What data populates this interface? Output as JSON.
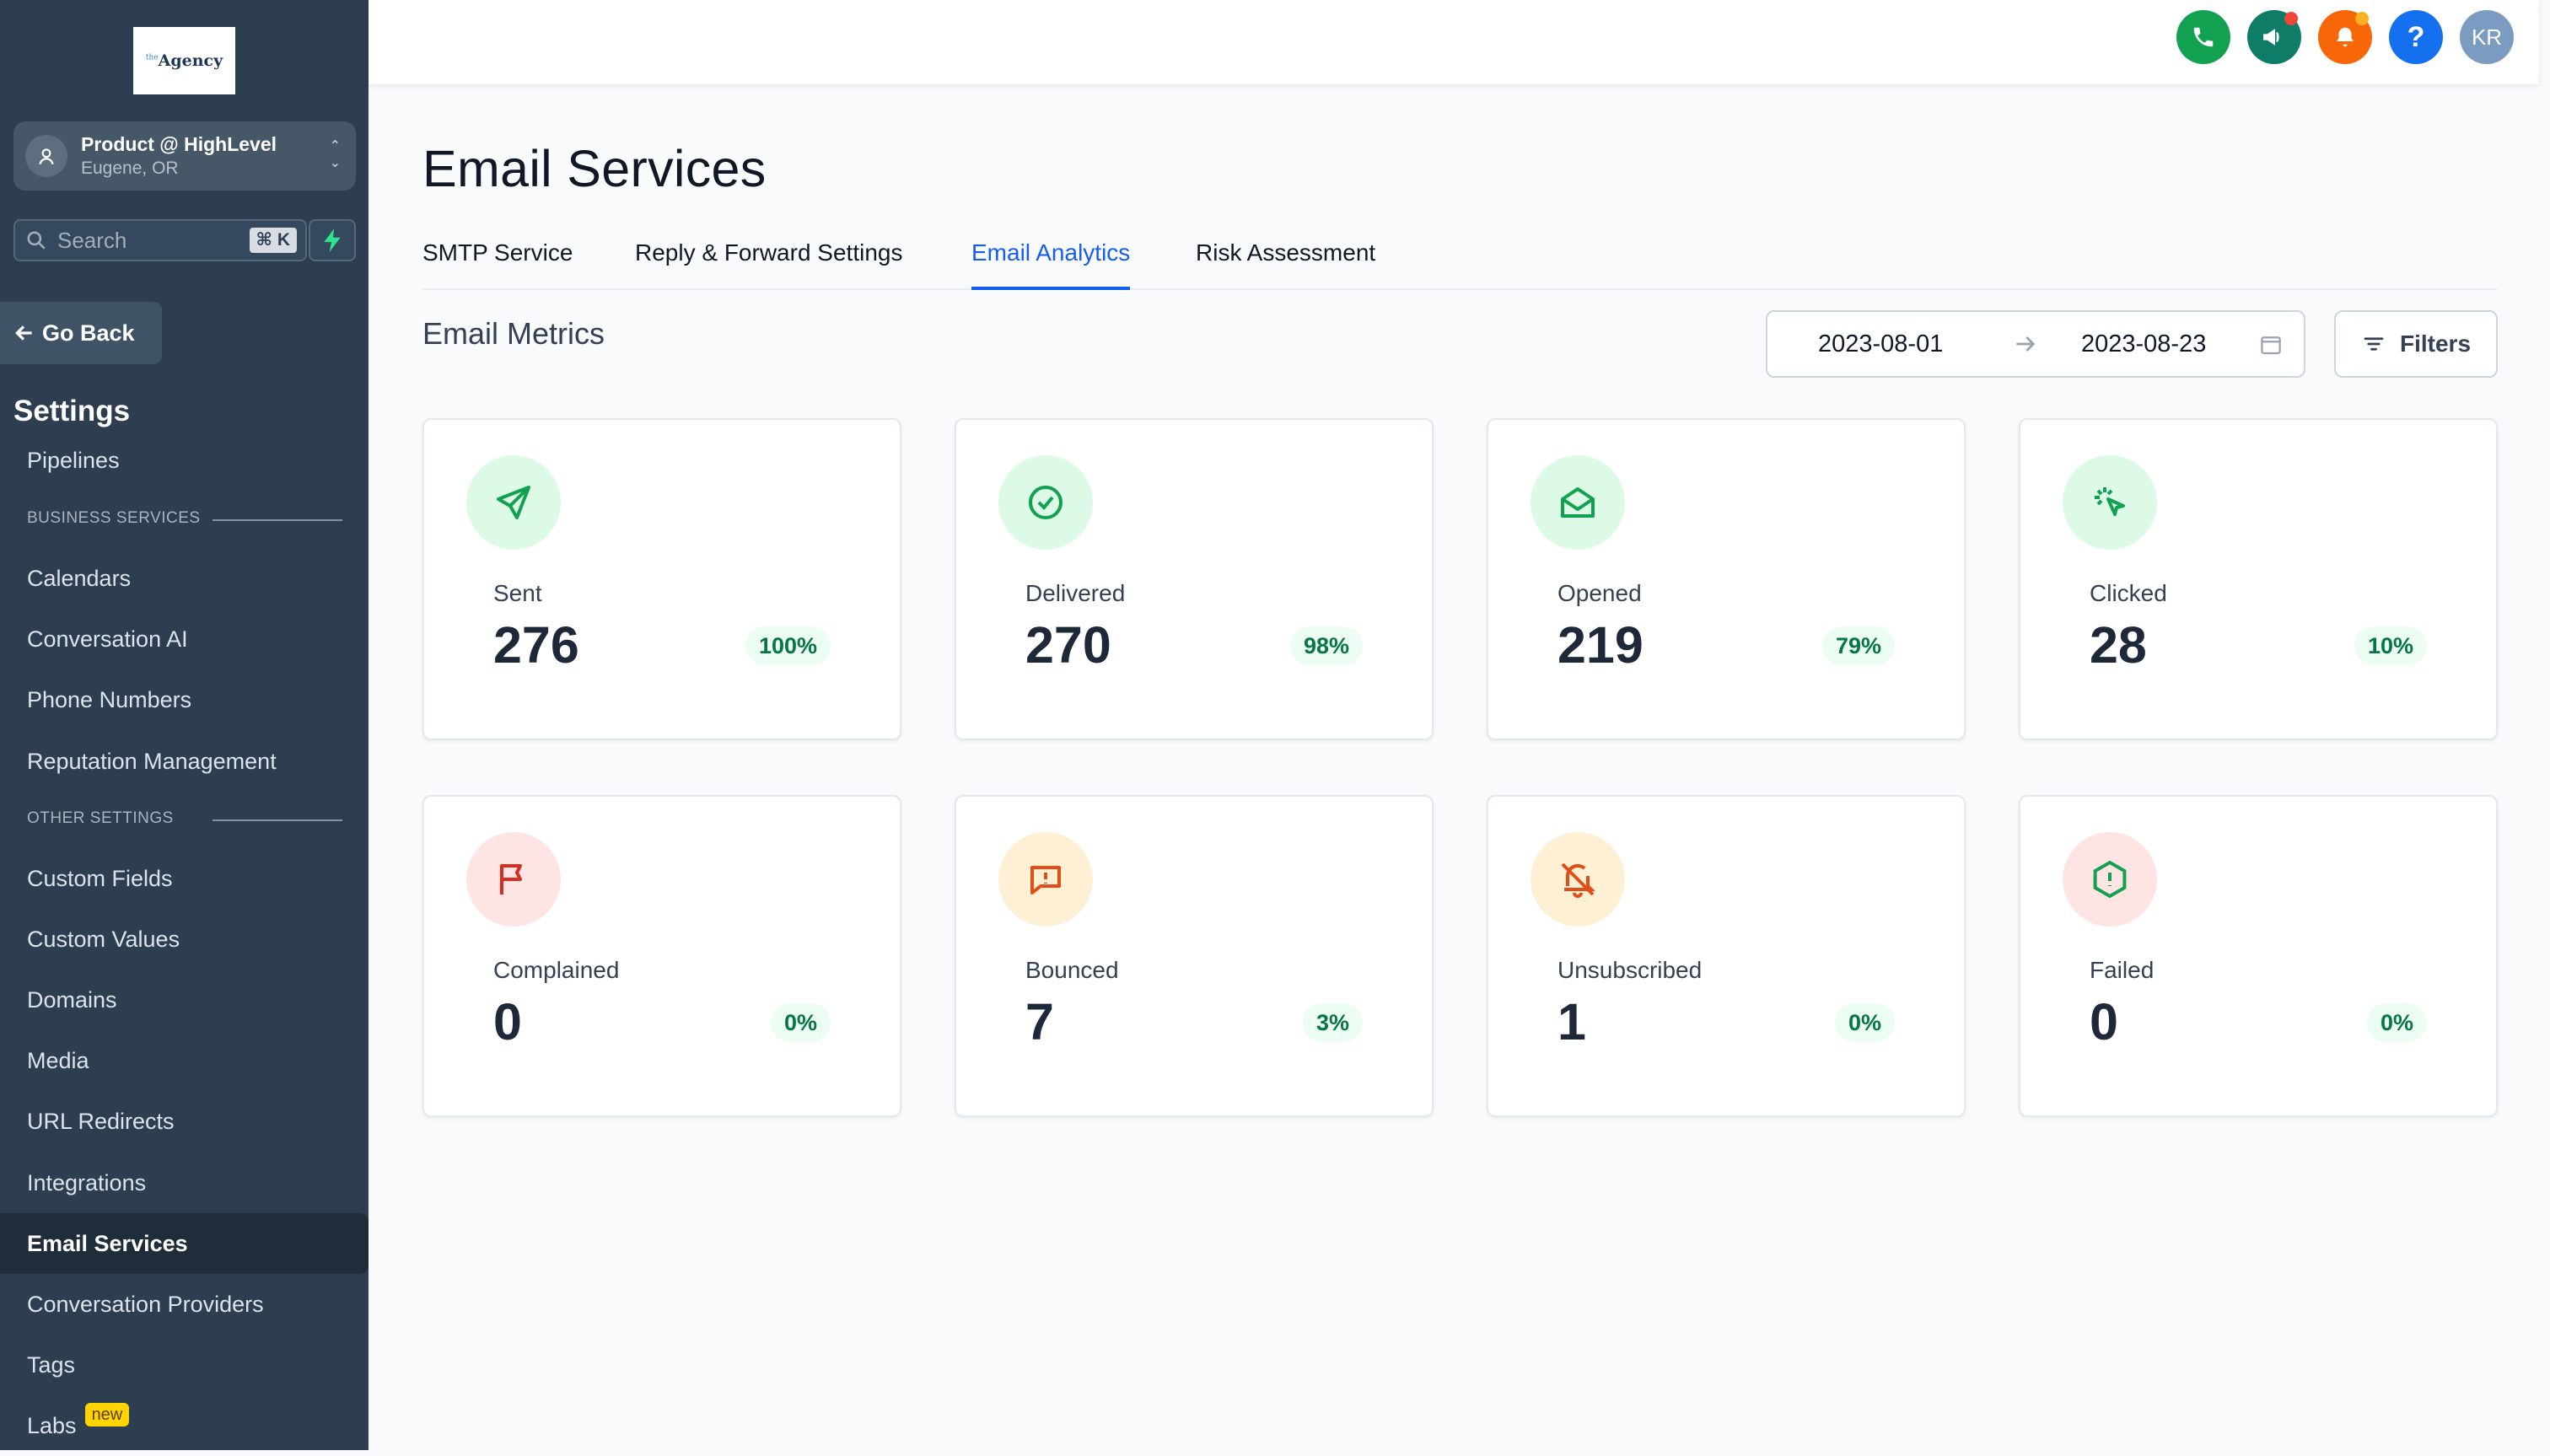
{
  "sidebar": {
    "logo_main": "Agency",
    "logo_super": "the",
    "account_name": "Product @ HighLevel",
    "account_location": "Eugene, OR",
    "search_placeholder": "Search",
    "search_shortcut": "⌘ K",
    "go_back": "Go Back",
    "settings_title": "Settings",
    "items": [
      {
        "label": "Pipelines"
      },
      {
        "label": "Calendars"
      },
      {
        "label": "Conversation AI"
      },
      {
        "label": "Phone Numbers"
      },
      {
        "label": "Reputation Management"
      },
      {
        "label": "Custom Fields"
      },
      {
        "label": "Custom Values"
      },
      {
        "label": "Domains"
      },
      {
        "label": "Media"
      },
      {
        "label": "URL Redirects"
      },
      {
        "label": "Integrations"
      },
      {
        "label": "Email Services",
        "active": true
      },
      {
        "label": "Conversation Providers"
      },
      {
        "label": "Tags"
      },
      {
        "label": "Labs",
        "badge": "new"
      }
    ],
    "sections": [
      "BUSINESS SERVICES",
      "OTHER SETTINGS"
    ]
  },
  "topbar": {
    "avatar_initials": "KR",
    "icons": [
      "phone-icon",
      "megaphone-icon",
      "bell-icon",
      "help-icon"
    ],
    "colors": {
      "phone": "#12a150",
      "megaphone": "#0e7c66",
      "bell": "#f76707",
      "help": "#1570ef",
      "avatar": "#7b9bc1"
    }
  },
  "main": {
    "title": "Email Services",
    "tabs": [
      {
        "label": "SMTP Service"
      },
      {
        "label": "Reply & Forward Settings"
      },
      {
        "label": "Email Analytics",
        "active": true
      },
      {
        "label": "Risk Assessment"
      }
    ],
    "section_title": "Email Metrics",
    "date_start": "2023-08-01",
    "date_end": "2023-08-23",
    "filters_label": "Filters",
    "metrics": [
      {
        "label": "Sent",
        "value": "276",
        "percent": "100%",
        "icon": "send-icon",
        "color": "#12a150",
        "bg": "#dcfae6"
      },
      {
        "label": "Delivered",
        "value": "270",
        "percent": "98%",
        "icon": "check-circle-icon",
        "color": "#12a150",
        "bg": "#dcfae6"
      },
      {
        "label": "Opened",
        "value": "219",
        "percent": "79%",
        "icon": "envelope-open-icon",
        "color": "#12a150",
        "bg": "#dcfae6"
      },
      {
        "label": "Clicked",
        "value": "28",
        "percent": "10%",
        "icon": "cursor-click-icon",
        "color": "#12a150",
        "bg": "#dcfae6"
      },
      {
        "label": "Complained",
        "value": "0",
        "percent": "0%",
        "icon": "flag-icon",
        "color": "#d92d20",
        "bg": "#fee4e2"
      },
      {
        "label": "Bounced",
        "value": "7",
        "percent": "3%",
        "icon": "message-alert-icon",
        "color": "#e04f16",
        "bg": "#fdf0d5"
      },
      {
        "label": "Unsubscribed",
        "value": "1",
        "percent": "0%",
        "icon": "bell-off-icon",
        "color": "#e04f16",
        "bg": "#fdf0d5"
      },
      {
        "label": "Failed",
        "value": "0",
        "percent": "0%",
        "icon": "alert-hexagon-icon",
        "color": "#12a150",
        "bg": "#fee4e2"
      }
    ]
  }
}
